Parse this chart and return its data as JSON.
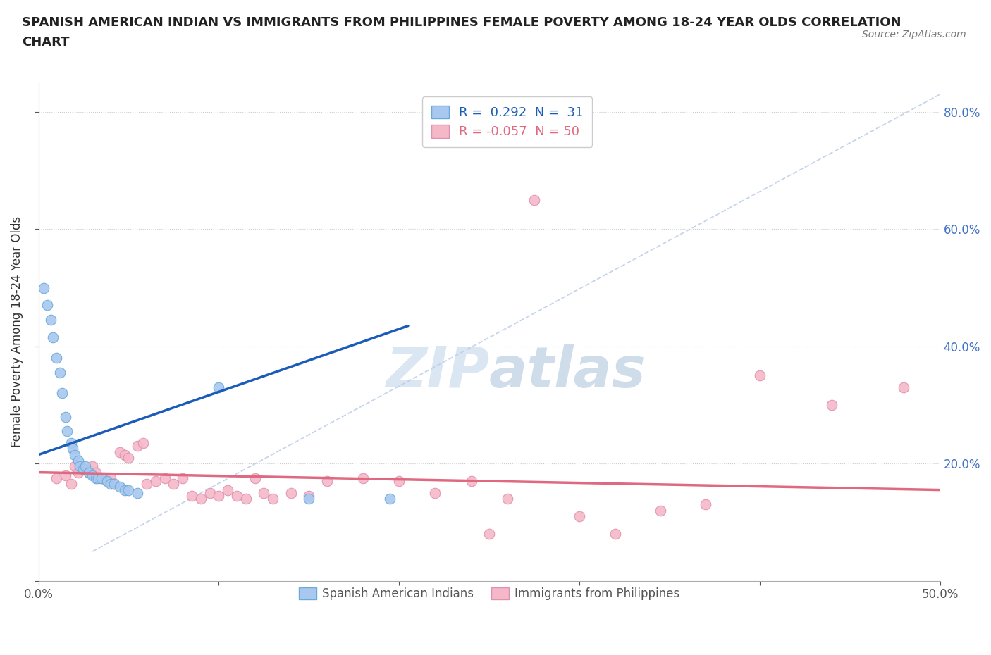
{
  "title_line1": "SPANISH AMERICAN INDIAN VS IMMIGRANTS FROM PHILIPPINES FEMALE POVERTY AMONG 18-24 YEAR OLDS CORRELATION",
  "title_line2": "CHART",
  "source": "Source: ZipAtlas.com",
  "ylabel": "Female Poverty Among 18-24 Year Olds",
  "xlim": [
    0,
    0.5
  ],
  "ylim": [
    0,
    0.85
  ],
  "r_blue": 0.292,
  "n_blue": 31,
  "r_pink": -0.057,
  "n_pink": 50,
  "blue_color": "#a8c8f0",
  "blue_edge": "#6aaad8",
  "pink_color": "#f5b8c8",
  "pink_edge": "#e090b0",
  "blue_line_color": "#1a5cb8",
  "pink_line_color": "#e06880",
  "ref_line_color": "#c0d0e8",
  "watermark_color": "#cfe0f0",
  "background_color": "#ffffff",
  "blue_x": [
    0.003,
    0.005,
    0.007,
    0.008,
    0.01,
    0.012,
    0.013,
    0.015,
    0.016,
    0.018,
    0.019,
    0.02,
    0.022,
    0.023,
    0.025,
    0.026,
    0.028,
    0.03,
    0.032,
    0.033,
    0.035,
    0.038,
    0.04,
    0.042,
    0.045,
    0.048,
    0.05,
    0.055,
    0.1,
    0.15,
    0.195
  ],
  "blue_y": [
    0.5,
    0.47,
    0.445,
    0.415,
    0.38,
    0.355,
    0.32,
    0.28,
    0.255,
    0.235,
    0.225,
    0.215,
    0.205,
    0.195,
    0.19,
    0.195,
    0.185,
    0.18,
    0.175,
    0.175,
    0.175,
    0.17,
    0.165,
    0.165,
    0.16,
    0.155,
    0.155,
    0.15,
    0.33,
    0.14,
    0.14
  ],
  "pink_x": [
    0.01,
    0.015,
    0.018,
    0.02,
    0.022,
    0.025,
    0.028,
    0.03,
    0.032,
    0.035,
    0.038,
    0.04,
    0.042,
    0.045,
    0.048,
    0.05,
    0.055,
    0.058,
    0.06,
    0.065,
    0.07,
    0.075,
    0.08,
    0.085,
    0.09,
    0.095,
    0.1,
    0.105,
    0.11,
    0.115,
    0.12,
    0.125,
    0.13,
    0.14,
    0.15,
    0.16,
    0.18,
    0.2,
    0.22,
    0.24,
    0.25,
    0.26,
    0.275,
    0.3,
    0.32,
    0.345,
    0.37,
    0.4,
    0.44,
    0.48
  ],
  "pink_y": [
    0.175,
    0.18,
    0.165,
    0.195,
    0.185,
    0.19,
    0.185,
    0.195,
    0.185,
    0.175,
    0.17,
    0.175,
    0.165,
    0.22,
    0.215,
    0.21,
    0.23,
    0.235,
    0.165,
    0.17,
    0.175,
    0.165,
    0.175,
    0.145,
    0.14,
    0.15,
    0.145,
    0.155,
    0.145,
    0.14,
    0.175,
    0.15,
    0.14,
    0.15,
    0.145,
    0.17,
    0.175,
    0.17,
    0.15,
    0.17,
    0.08,
    0.14,
    0.65,
    0.11,
    0.08,
    0.12,
    0.13,
    0.35,
    0.3,
    0.33
  ]
}
